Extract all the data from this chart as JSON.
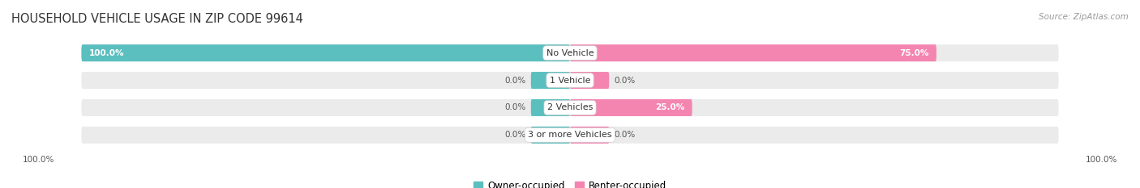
{
  "title": "HOUSEHOLD VEHICLE USAGE IN ZIP CODE 99614",
  "source": "Source: ZipAtlas.com",
  "categories": [
    "No Vehicle",
    "1 Vehicle",
    "2 Vehicles",
    "3 or more Vehicles"
  ],
  "owner_values": [
    100.0,
    0.0,
    0.0,
    0.0
  ],
  "renter_values": [
    75.0,
    0.0,
    25.0,
    0.0
  ],
  "owner_color": "#5BBFBF",
  "renter_color": "#F485B0",
  "bar_bg_color": "#EBEBEB",
  "bar_height": 0.62,
  "title_fontsize": 10.5,
  "label_fontsize": 7.5,
  "cat_fontsize": 8.0,
  "legend_fontsize": 8.5,
  "source_fontsize": 7.5,
  "axis_label_left": "100.0%",
  "axis_label_right": "100.0%",
  "fig_bg_color": "#FFFFFF",
  "stub_size": 8.0,
  "max_val": 100.0
}
